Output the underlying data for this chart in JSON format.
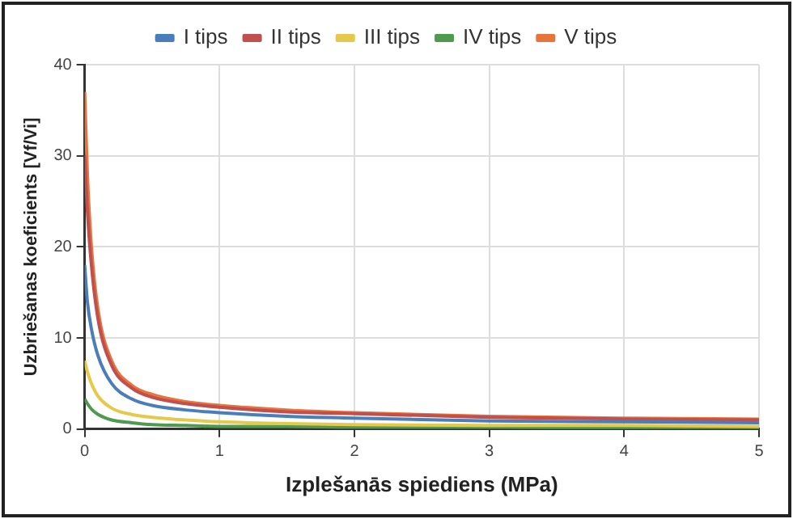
{
  "chart_data": {
    "type": "line",
    "xlabel": "Izplešanās spiediens (MPa)",
    "ylabel": "Uzbriešanas koeficients [Vf/Vi]",
    "x": [
      0,
      0.02,
      0.05,
      0.1,
      0.2,
      0.35,
      0.5,
      0.75,
      1,
      1.5,
      2,
      3,
      4,
      5
    ],
    "series": [
      {
        "name": "I tips",
        "color": "#4a7ebb",
        "values": [
          18,
          14,
          11,
          8,
          5,
          3.3,
          2.6,
          2.1,
          1.8,
          1.4,
          1.2,
          0.9,
          0.8,
          0.7
        ]
      },
      {
        "name": "II tips",
        "color": "#c0504d",
        "values": [
          30,
          24,
          18,
          12,
          7,
          4.5,
          3.5,
          2.8,
          2.4,
          1.9,
          1.7,
          1.3,
          1.1,
          1.0
        ]
      },
      {
        "name": "III tips",
        "color": "#e6c84a",
        "values": [
          7.5,
          6.3,
          5,
          3.6,
          2.3,
          1.6,
          1.3,
          1,
          0.8,
          0.6,
          0.5,
          0.4,
          0.4,
          0.3
        ]
      },
      {
        "name": "IV tips",
        "color": "#4e9a4e",
        "values": [
          3.3,
          2.8,
          2.2,
          1.6,
          1,
          0.7,
          0.5,
          0.4,
          0.3,
          0.3,
          0.2,
          0.2,
          0.1,
          0.1
        ]
      },
      {
        "name": "V tips",
        "color": "#e8743b",
        "values": [
          37,
          28,
          20,
          13,
          7.5,
          4.8,
          3.8,
          3,
          2.6,
          2.1,
          1.8,
          1.4,
          1.2,
          1.1
        ]
      }
    ],
    "xlim": [
      0,
      5
    ],
    "xticks": [
      0,
      1,
      2,
      3,
      4,
      5
    ],
    "ylim": [
      0,
      40
    ],
    "yticks": [
      0,
      10,
      20,
      30,
      40
    ],
    "grid": true,
    "legend": "top",
    "marker": "none",
    "line_style": "solid"
  }
}
